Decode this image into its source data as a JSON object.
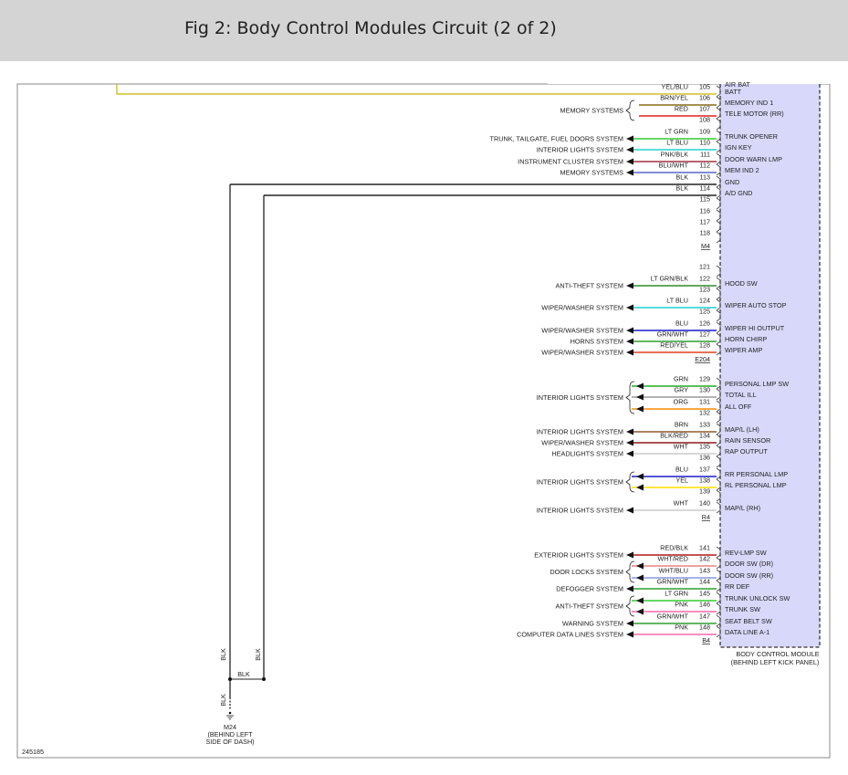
{
  "header": {
    "title": "Fig 2: Body Control Modules Circuit (2 of 2)"
  },
  "figure_id": "245185",
  "module": {
    "name": "BODY CONTROL MODULE",
    "location": "(BEHIND LEFT KICK PANEL)"
  },
  "ground": {
    "name": "M24",
    "location_line1": "(BEHIND LEFT",
    "location_line2": "SIDE OF DASH)",
    "wire_colors": [
      "BLK",
      "BLK",
      "BLK",
      "BLK"
    ]
  },
  "top_partial_label": "AIR BAT",
  "connectors": [
    "M4",
    "E204",
    "R4",
    "B4"
  ],
  "pins": [
    {
      "pin": "105",
      "color": "YEL/BLU",
      "hex": "#c8b400",
      "signal": "BATT",
      "system": ""
    },
    {
      "pin": "106",
      "color": "BRN/YEL",
      "hex": "#8a6a1a",
      "signal": "MEMORY IND 1",
      "system": "MEMORY SYSTEMS"
    },
    {
      "pin": "107",
      "color": "RED",
      "hex": "#e02020",
      "signal": "TELE MOTOR (RR)",
      "system": ""
    },
    {
      "pin": "108",
      "color": "",
      "hex": "",
      "signal": "",
      "system": ""
    },
    {
      "pin": "109",
      "color": "LT GRN",
      "hex": "#33cc33",
      "signal": "TRUNK OPENER",
      "system": "TRUNK, TAILGATE, FUEL DOORS SYSTEM"
    },
    {
      "pin": "110",
      "color": "LT BLU",
      "hex": "#22d0d0",
      "signal": "IGN KEY",
      "system": "INTERIOR LIGHTS SYSTEM"
    },
    {
      "pin": "111",
      "color": "PNK/BLK",
      "hex": "#a03040",
      "signal": "DOOR WARN LMP",
      "system": "INSTRUMENT CLUSTER SYSTEM"
    },
    {
      "pin": "112",
      "color": "BLU/WHT",
      "hex": "#5566cc",
      "signal": "MEM IND 2",
      "system": "MEMORY SYSTEMS"
    },
    {
      "pin": "113",
      "color": "BLK",
      "hex": "#222222",
      "signal": "GND",
      "system": ""
    },
    {
      "pin": "114",
      "color": "BLK",
      "hex": "#222222",
      "signal": "A/D GND",
      "system": ""
    },
    {
      "pin": "115",
      "color": "",
      "hex": "",
      "signal": "",
      "system": ""
    },
    {
      "pin": "116",
      "color": "",
      "hex": "",
      "signal": "",
      "system": ""
    },
    {
      "pin": "117",
      "color": "",
      "hex": "",
      "signal": "",
      "system": ""
    },
    {
      "pin": "118",
      "color": "",
      "hex": "",
      "signal": "",
      "system": ""
    },
    {
      "pin": "121",
      "color": "",
      "hex": "",
      "signal": "",
      "system": ""
    },
    {
      "pin": "122",
      "color": "LT GRN/BLK",
      "hex": "#2e8b2e",
      "signal": "HOOD SW",
      "system": "ANTI-THEFT SYSTEM"
    },
    {
      "pin": "123",
      "color": "",
      "hex": "",
      "signal": "",
      "system": ""
    },
    {
      "pin": "124",
      "color": "LT BLU",
      "hex": "#22d0d0",
      "signal": "WIPER AUTO STOP",
      "system": "WIPER/WASHER SYSTEM"
    },
    {
      "pin": "125",
      "color": "",
      "hex": "",
      "signal": "",
      "system": ""
    },
    {
      "pin": "126",
      "color": "BLU",
      "hex": "#1a1acc",
      "signal": "WIPER HI OUTPUT",
      "system": "WIPER/WASHER SYSTEM"
    },
    {
      "pin": "127",
      "color": "GRN/WHT",
      "hex": "#2e9e2e",
      "signal": "HORN CHIRP",
      "system": "HORNS SYSTEM"
    },
    {
      "pin": "128",
      "color": "RED/YEL",
      "hex": "#e04020",
      "signal": "WIPER AMP",
      "system": "WIPER/WASHER SYSTEM"
    },
    {
      "pin": "129",
      "color": "GRN",
      "hex": "#22aa22",
      "signal": "PERSONAL LMP SW",
      "system": ""
    },
    {
      "pin": "130",
      "color": "GRY",
      "hex": "#999999",
      "signal": "TOTAL ILL",
      "system": "INTERIOR LIGHTS SYSTEM"
    },
    {
      "pin": "131",
      "color": "ORG",
      "hex": "#ff8c00",
      "signal": "ALL OFF",
      "system": ""
    },
    {
      "pin": "132",
      "color": "",
      "hex": "",
      "signal": "",
      "system": ""
    },
    {
      "pin": "133",
      "color": "BRN",
      "hex": "#8b5a2b",
      "signal": "MAP/L (LH)",
      "system": "INTERIOR LIGHTS SYSTEM"
    },
    {
      "pin": "134",
      "color": "BLK/RED",
      "hex": "#8b1a1a",
      "signal": "RAIN SENSOR",
      "system": "WIPER/WASHER SYSTEM"
    },
    {
      "pin": "135",
      "color": "WHT",
      "hex": "#cccccc",
      "signal": "RAP OUTPUT",
      "system": "HEADLIGHTS SYSTEM"
    },
    {
      "pin": "136",
      "color": "",
      "hex": "",
      "signal": "",
      "system": ""
    },
    {
      "pin": "137",
      "color": "BLU",
      "hex": "#1a1acc",
      "signal": "RR PERSONAL LMP",
      "system": "INTERIOR LIGHTS SYSTEM"
    },
    {
      "pin": "138",
      "color": "YEL",
      "hex": "#ffdd00",
      "signal": "RL PERSONAL LMP",
      "system": ""
    },
    {
      "pin": "139",
      "color": "",
      "hex": "",
      "signal": "",
      "system": ""
    },
    {
      "pin": "140",
      "color": "WHT",
      "hex": "#cccccc",
      "signal": "MAP/L (RH)",
      "system": "INTERIOR LIGHTS SYSTEM"
    },
    {
      "pin": "141",
      "color": "RED/BLK",
      "hex": "#b01a1a",
      "signal": "REV-LMP SW",
      "system": "EXTERIOR LIGHTS SYSTEM"
    },
    {
      "pin": "142",
      "color": "WHT/RED",
      "hex": "#e88080",
      "signal": "DOOR SW (DR)",
      "system": "DOOR LOCKS SYSTEM"
    },
    {
      "pin": "143",
      "color": "WHT/BLU",
      "hex": "#8899dd",
      "signal": "DOOR SW (RR)",
      "system": ""
    },
    {
      "pin": "144",
      "color": "GRN/WHT",
      "hex": "#2e9e2e",
      "signal": "RR DEF",
      "system": "DEFOGGER SYSTEM"
    },
    {
      "pin": "145",
      "color": "LT GRN",
      "hex": "#33cc33",
      "signal": "TRUNK UNLOCK SW",
      "system": "ANTI-THEFT SYSTEM"
    },
    {
      "pin": "146",
      "color": "PNK",
      "hex": "#ff66aa",
      "signal": "TRUNK SW",
      "system": ""
    },
    {
      "pin": "147",
      "color": "GRN/WHT",
      "hex": "#2e9e2e",
      "signal": "SEAT BELT SW",
      "system": "WARNING SYSTEM"
    },
    {
      "pin": "148",
      "color": "PNK",
      "hex": "#ff66aa",
      "signal": "DATA LINE A-1",
      "system": "COMPUTER DATA LINES SYSTEM"
    }
  ]
}
